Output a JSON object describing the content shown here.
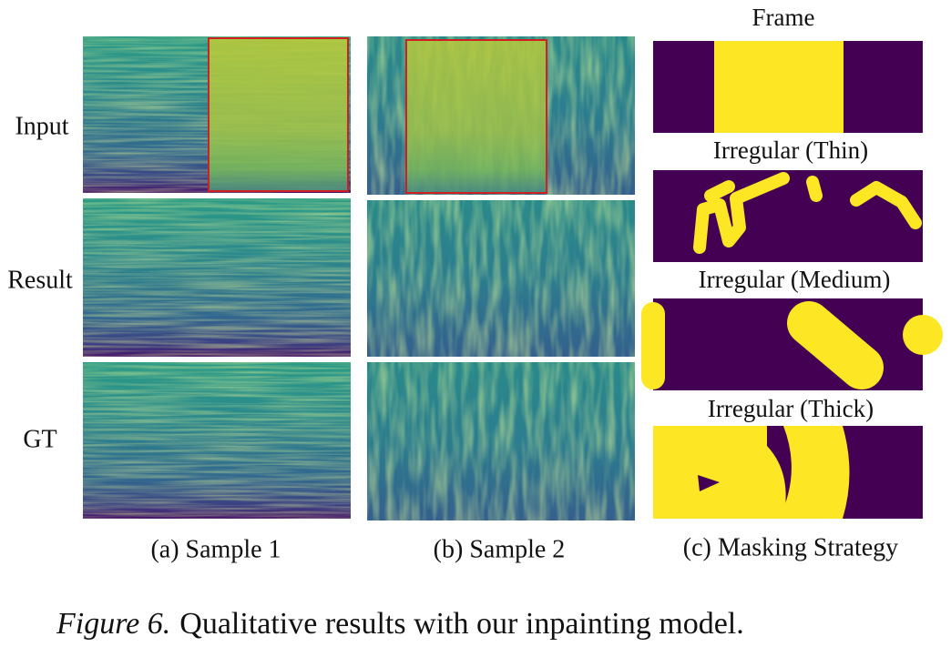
{
  "row_labels": [
    "Input",
    "Result",
    "GT"
  ],
  "column_captions": [
    "(a) Sample 1",
    "(b) Sample 2",
    "(c) Masking Strategy"
  ],
  "mask_titles": [
    "Frame",
    "Irregular (Thin)",
    "Irregular (Medium)",
    "Irregular (Thick)"
  ],
  "caption": {
    "label": "Figure 6.",
    "text": "Qualitative results with our inpainting model."
  }
}
